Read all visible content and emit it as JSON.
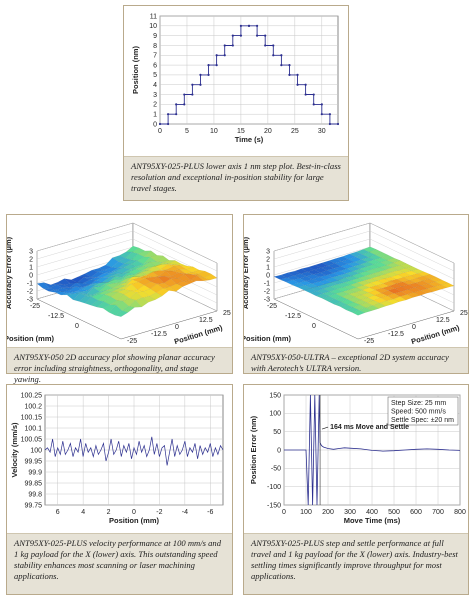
{
  "panels": [
    {
      "id": "step-plot",
      "caption": "ANT95XY-025-PLUS lower axis 1 nm step plot. Best-in-class resolution and exceptional in-position stability for large travel stages.",
      "chart_data": {
        "type": "line",
        "xlabel": "Time (s)",
        "ylabel": "Position (nm)",
        "xlim": [
          0,
          33
        ],
        "ylim": [
          0,
          11
        ],
        "xticks": [
          0,
          5,
          10,
          15,
          20,
          25,
          30
        ],
        "yticks": [
          0,
          1,
          2,
          3,
          4,
          5,
          6,
          7,
          8,
          9,
          10,
          11
        ],
        "grid": true,
        "series": [
          {
            "x": [
              0,
              1.5,
              1.5,
              3,
              3,
              4.5,
              4.5,
              6,
              6,
              7.5,
              7.5,
              9,
              9,
              10.5,
              10.5,
              12,
              12,
              13.5,
              13.5,
              15,
              15,
              16.5,
              16.5,
              18,
              18,
              19.5,
              19.5,
              21,
              21,
              22.5,
              22.5,
              24,
              24,
              25.5,
              25.5,
              27,
              27,
              28.5,
              28.5,
              30,
              30,
              31.5,
              31.5,
              33
            ],
            "y": [
              0,
              0,
              1,
              1,
              2,
              2,
              3,
              3,
              4,
              4,
              5,
              5,
              6,
              6,
              7,
              7,
              8,
              8,
              9,
              9,
              10,
              10,
              10,
              10,
              9,
              9,
              8,
              8,
              7,
              7,
              6,
              6,
              5,
              5,
              4,
              4,
              3,
              3,
              2,
              2,
              1,
              1,
              0,
              0
            ]
          }
        ]
      }
    },
    {
      "id": "surface-050",
      "caption": "ANT95XY-050 2D accuracy plot showing planar accuracy error including straightness, orthogonality, and stage yawing.",
      "chart_data": {
        "type": "heatmap",
        "zlabel": "Accuracy Error (µm)",
        "xlabel": "Position (mm)",
        "ylabel": "Position (mm)",
        "zticks": [
          3,
          2,
          1,
          0,
          -1,
          -2,
          -3
        ],
        "xticks": [
          "-25",
          "-12.5",
          "0"
        ],
        "yticks": [
          "25",
          "12.5",
          "0",
          "-12.5",
          "-25"
        ],
        "zlim": [
          -3,
          3
        ],
        "xlim": [
          -25,
          25
        ],
        "ylim": [
          -25,
          25
        ],
        "peak": 2.0
      }
    },
    {
      "id": "surface-050-ultra",
      "caption": "ANT95XY-050-ULTRA – exceptional 2D system accuracy with Aerotech’s ULTRA version.",
      "chart_data": {
        "type": "heatmap",
        "zlabel": "Accuracy Error (µm)",
        "xlabel": "Position (mm)",
        "ylabel": "Position (mm)",
        "zticks": [
          3,
          2,
          1,
          0,
          -1,
          -2,
          -3
        ],
        "xticks": [
          "-25",
          "-12.5",
          "0"
        ],
        "yticks": [
          "25",
          "12.5",
          "0",
          "-12.5",
          "-25"
        ],
        "zlim": [
          -3,
          3
        ],
        "xlim": [
          -25,
          25
        ],
        "ylim": [
          -25,
          25
        ],
        "peak": 0.3
      }
    },
    {
      "id": "velocity",
      "caption": "ANT95XY-025-PLUS velocity performance at 100 mm/s and 1 kg payload for the X (lower) axis. This outstanding speed stability enhances most scanning or laser machining applications.",
      "chart_data": {
        "type": "line",
        "xlabel": "Position (mm)",
        "ylabel": "Velocity (mm/s)",
        "xlim": [
          -7,
          7
        ],
        "ylim": [
          99.75,
          100.25
        ],
        "xticks": [
          6,
          4,
          2,
          0,
          -2,
          -4,
          -6
        ],
        "yticks": [
          99.75,
          99.8,
          99.85,
          99.9,
          99.95,
          100,
          100.05,
          100.1,
          100.15,
          100.2,
          100.25
        ],
        "ytick_labels": [
          "99.75",
          "99.8",
          "99.85",
          "99.9",
          "99.95",
          "100",
          "100.05",
          "100.1",
          "100.15",
          "100.2",
          "100.25"
        ],
        "grid": true,
        "series": [
          {
            "x": [
              -7,
              -6.8,
              -6.6,
              -6.4,
              -6.2,
              -6,
              -5.8,
              -5.6,
              -5.4,
              -5.2,
              -5,
              -4.8,
              -4.6,
              -4.4,
              -4.2,
              -4,
              -3.8,
              -3.6,
              -3.4,
              -3.2,
              -3,
              -2.8,
              -2.6,
              -2.4,
              -2.2,
              -2,
              -1.8,
              -1.6,
              -1.4,
              -1.2,
              -1,
              -0.8,
              -0.6,
              -0.4,
              -0.2,
              0,
              0.2,
              0.4,
              0.6,
              0.8,
              1,
              1.2,
              1.4,
              1.6,
              1.8,
              2,
              2.2,
              2.4,
              2.6,
              2.8,
              3,
              3.2,
              3.4,
              3.6,
              3.8,
              4,
              4.2,
              4.4,
              4.6,
              4.8,
              5,
              5.2,
              5.4,
              5.6,
              5.8,
              6,
              6.2,
              6.4,
              6.6,
              6.8,
              7
            ],
            "y": [
              100,
              100.02,
              99.98,
              100.01,
              99.97,
              100.03,
              99.99,
              100.01,
              99.98,
              100.02,
              99.96,
              100.03,
              99.99,
              100.01,
              99.97,
              100.04,
              100,
              99.98,
              100.02,
              99.97,
              100.05,
              99.99,
              99.93,
              100.02,
              100.01,
              99.97,
              100.03,
              99.98,
              100.06,
              100,
              99.97,
              100.02,
              99.99,
              100.04,
              99.98,
              100.01,
              99.96,
              100.03,
              99.99,
              100.02,
              99.97,
              100.04,
              100,
              99.98,
              100.05,
              99.99,
              99.95,
              100.03,
              100,
              99.98,
              100.02,
              99.97,
              100.01,
              99.99,
              100.03,
              99.97,
              100.05,
              99.99,
              100.01,
              99.97,
              100.03,
              100,
              99.98,
              100.04,
              99.98,
              100.01,
              99.97,
              100.05,
              99.99,
              100.01,
              100
            ]
          }
        ]
      }
    },
    {
      "id": "move-settle",
      "caption": "ANT95XY-025-PLUS step and settle performance at full travel and 1 kg payload for the X (lower) axis. Industry-best settling times significantly improve throughput for most applications.",
      "chart_data": {
        "type": "line",
        "xlabel": "Move Time (ms)",
        "ylabel": "Position Error (nm)",
        "xlim": [
          0,
          800
        ],
        "ylim": [
          -150,
          150
        ],
        "xticks": [
          0,
          100,
          200,
          300,
          400,
          500,
          600,
          700,
          800
        ],
        "yticks": [
          150,
          100,
          50,
          0,
          -50,
          -100,
          -150
        ],
        "grid": true,
        "legend": [
          "Step Size: 25 mm",
          "Speed: 500 mm/s",
          "Settle Spec: ±20 nm"
        ],
        "annotation": "164 ms Move and Settle",
        "settle_ms": 164,
        "series": [
          {
            "x": [
              0,
              100,
              110,
              120,
              130,
              140,
              150,
              160,
              164,
              170,
              180,
              200,
              225,
              250,
              275,
              300,
              350,
              400,
              450,
              500,
              550,
              600,
              650,
              700,
              750,
              800
            ],
            "y": [
              0,
              0,
              -150,
              150,
              -150,
              150,
              -150,
              150,
              20,
              12,
              8,
              4,
              2,
              4,
              6,
              5,
              3,
              -1,
              -3,
              -2,
              0,
              2,
              3,
              2,
              0,
              -1
            ]
          }
        ]
      }
    }
  ]
}
